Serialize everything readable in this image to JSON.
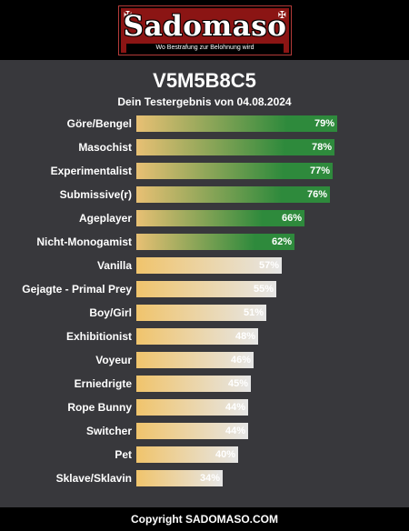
{
  "header": {
    "logo_text": "Sadomaso",
    "tagline": "Wo Bestrafung zur Belohnung wird"
  },
  "result": {
    "title": "V5M5B8C5",
    "subtitle": "Dein Testergebnis von 04.08.2024"
  },
  "colors": {
    "high_start": "#e8c074",
    "high_end": "#2e8a3c",
    "low_start": "#f0c46c",
    "low_end": "#e6e6e6",
    "panel": "#38383c"
  },
  "results": [
    {
      "label": "Göre/Bengel",
      "percent_label": "79%",
      "value": 79,
      "highlight": true
    },
    {
      "label": "Masochist",
      "percent_label": "78%",
      "value": 78,
      "highlight": true
    },
    {
      "label": "Experimentalist",
      "percent_label": "77%",
      "value": 77,
      "highlight": true
    },
    {
      "label": "Submissive(r)",
      "percent_label": "76%",
      "value": 76,
      "highlight": true
    },
    {
      "label": "Ageplayer",
      "percent_label": "66%",
      "value": 66,
      "highlight": true
    },
    {
      "label": "Nicht-Monogamist",
      "percent_label": "62%",
      "value": 62,
      "highlight": true
    },
    {
      "label": "Vanilla",
      "percent_label": "57%",
      "value": 57,
      "highlight": false
    },
    {
      "label": "Gejagte - Primal Prey",
      "percent_label": "55%",
      "value": 55,
      "highlight": false
    },
    {
      "label": "Boy/Girl",
      "percent_label": "51%",
      "value": 51,
      "highlight": false
    },
    {
      "label": "Exhibitionist",
      "percent_label": "48%",
      "value": 48,
      "highlight": false
    },
    {
      "label": "Voyeur",
      "percent_label": "46%",
      "value": 46,
      "highlight": false
    },
    {
      "label": "Erniedrigte",
      "percent_label": "45%",
      "value": 45,
      "highlight": false
    },
    {
      "label": "Rope Bunny",
      "percent_label": "44%",
      "value": 44,
      "highlight": false
    },
    {
      "label": "Switcher",
      "percent_label": "44%",
      "value": 44,
      "highlight": false
    },
    {
      "label": "Pet",
      "percent_label": "40%",
      "value": 40,
      "highlight": false
    },
    {
      "label": "Sklave/Sklavin",
      "percent_label": "34%",
      "value": 34,
      "highlight": false
    }
  ],
  "footer": {
    "copyright": "Copyright SADOMASO.COM"
  }
}
